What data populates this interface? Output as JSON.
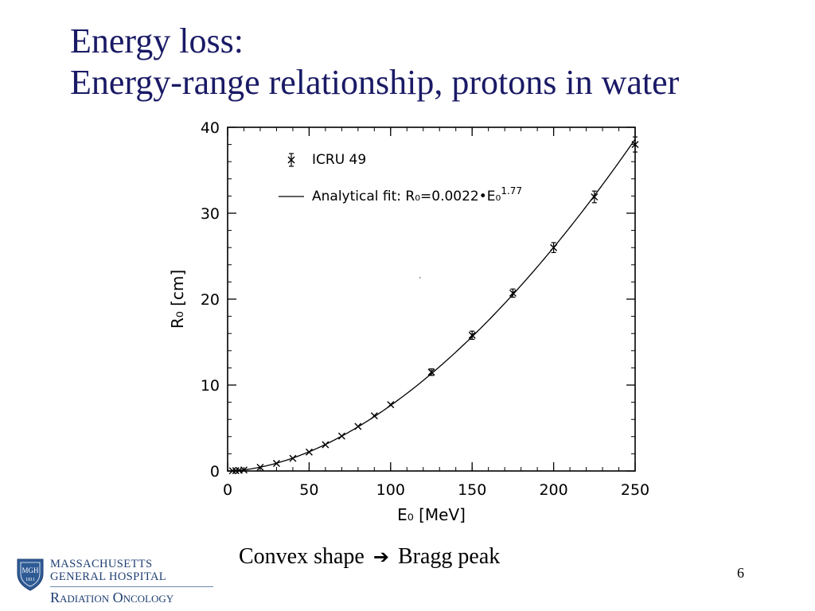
{
  "slide": {
    "title_line1": "Energy loss:",
    "title_line2": "Energy-range relationship, protons in water",
    "caption_left": "Convex shape",
    "caption_arrow": "➔",
    "caption_right": "Bragg peak",
    "page_number": "6"
  },
  "logo": {
    "shield_text": "MGH",
    "shield_year": "1811",
    "line1": "MASSACHUSETTS",
    "line2": "GENERAL HOSPITAL",
    "line3": "Radiation Oncology",
    "color": "#1e3f73"
  },
  "chart_data": {
    "type": "scatter",
    "title": "",
    "xlabel": "E₀ [MeV]",
    "ylabel": "R₀ [cm]",
    "xlim": [
      0,
      250
    ],
    "ylim": [
      0,
      40
    ],
    "xticks": [
      0,
      50,
      100,
      150,
      200,
      250
    ],
    "yticks": [
      0,
      10,
      20,
      30,
      40
    ],
    "x_minor_step": 10,
    "y_minor_step": 2,
    "grid": false,
    "legend_position": "top-left",
    "legend": [
      {
        "symbol": "marker-errorbar",
        "label": "ICRU 49"
      },
      {
        "symbol": "line",
        "label": "Analytical fit: R₀=0.0022•E₀^1.77"
      }
    ],
    "series": [
      {
        "name": "ICRU 49",
        "style": "marker",
        "points": [
          {
            "x": 3,
            "y": 0.02,
            "err": 0
          },
          {
            "x": 5,
            "y": 0.04,
            "err": 0
          },
          {
            "x": 7,
            "y": 0.07,
            "err": 0
          },
          {
            "x": 10,
            "y": 0.12,
            "err": 0
          },
          {
            "x": 20,
            "y": 0.43,
            "err": 0
          },
          {
            "x": 30,
            "y": 0.88,
            "err": 0
          },
          {
            "x": 40,
            "y": 1.47,
            "err": 0
          },
          {
            "x": 50,
            "y": 2.2,
            "err": 0
          },
          {
            "x": 60,
            "y": 3.06,
            "err": 0
          },
          {
            "x": 70,
            "y": 4.06,
            "err": 0
          },
          {
            "x": 80,
            "y": 5.18,
            "err": 0
          },
          {
            "x": 90,
            "y": 6.42,
            "err": 0
          },
          {
            "x": 100,
            "y": 7.72,
            "err": 0
          },
          {
            "x": 125,
            "y": 11.5,
            "err": 0.1
          },
          {
            "x": 150,
            "y": 15.8,
            "err": 0.2
          },
          {
            "x": 175,
            "y": 20.7,
            "err": 0.2
          },
          {
            "x": 200,
            "y": 26.0,
            "err": 0.3
          },
          {
            "x": 225,
            "y": 31.9,
            "err": 0.4
          },
          {
            "x": 250,
            "y": 38.0,
            "err": 0.6
          }
        ]
      },
      {
        "name": "Analytical fit: R₀=0.0022•E₀^1.77",
        "style": "line",
        "coefficient": 0.0022,
        "exponent": 1.77
      }
    ],
    "colors": {
      "ink": "#000000",
      "background": "#ffffff"
    }
  }
}
